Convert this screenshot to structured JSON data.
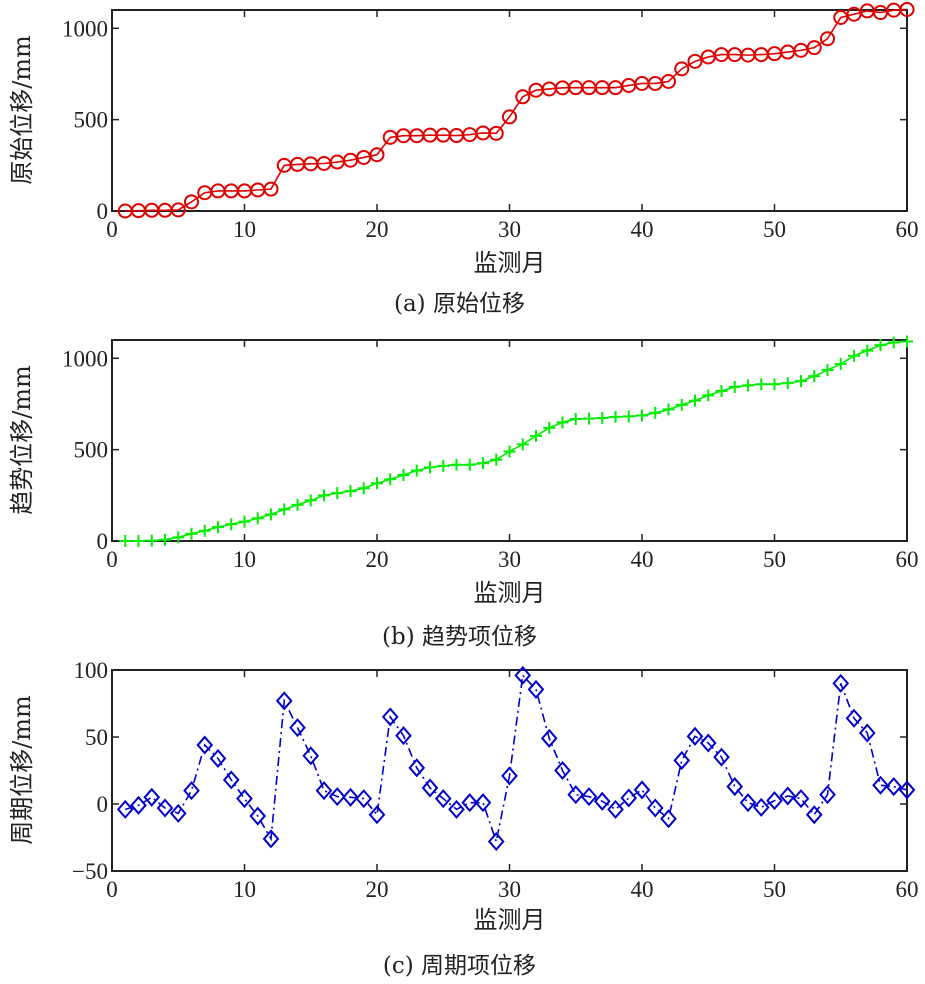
{
  "chart_data": [
    {
      "type": "line",
      "caption": "(a) 原始位移",
      "xlabel": "监测月",
      "ylabel": "原始位移/mm",
      "xlim": [
        0,
        60
      ],
      "ylim": [
        0,
        1100
      ],
      "xticks": [
        0,
        10,
        20,
        30,
        40,
        50,
        60
      ],
      "yticks": [
        0,
        500,
        1000
      ],
      "grid": false,
      "series": [
        {
          "name": "原始位移",
          "color": "#e00000",
          "marker": "circle",
          "linestyle": "solid",
          "x": [
            1,
            2,
            3,
            4,
            5,
            6,
            7,
            8,
            9,
            10,
            11,
            12,
            13,
            14,
            15,
            16,
            17,
            18,
            19,
            20,
            21,
            22,
            23,
            24,
            25,
            26,
            27,
            28,
            29,
            30,
            31,
            32,
            33,
            34,
            35,
            36,
            37,
            38,
            39,
            40,
            41,
            42,
            43,
            44,
            45,
            46,
            47,
            48,
            49,
            50,
            51,
            52,
            53,
            54,
            55,
            56,
            57,
            58,
            59,
            60
          ],
          "values": [
            0,
            2,
            4,
            4,
            6,
            50,
            100,
            110,
            110,
            110,
            115,
            120,
            250,
            255,
            258,
            260,
            268,
            278,
            293,
            308,
            403,
            412,
            412,
            415,
            415,
            413,
            418,
            427,
            425,
            515,
            625,
            661,
            668,
            674,
            675,
            675,
            675,
            675,
            687,
            698,
            698,
            709,
            778,
            819,
            843,
            856,
            856,
            853,
            856,
            861,
            870,
            879,
            894,
            943,
            1059,
            1077,
            1095,
            1086,
            1099,
            1103
          ]
        }
      ]
    },
    {
      "type": "line",
      "caption": "(b) 趋势项位移",
      "xlabel": "监测月",
      "ylabel": "趋势位移/mm",
      "xlim": [
        0,
        60
      ],
      "ylim": [
        0,
        1100
      ],
      "xticks": [
        0,
        10,
        20,
        30,
        40,
        50,
        60
      ],
      "yticks": [
        0,
        500,
        1000
      ],
      "grid": false,
      "series": [
        {
          "name": "趋势项位移",
          "color": "#00ee00",
          "marker": "plus",
          "linestyle": "solid",
          "x": [
            1,
            2,
            3,
            4,
            5,
            6,
            7,
            8,
            9,
            10,
            11,
            12,
            13,
            14,
            15,
            16,
            17,
            18,
            19,
            20,
            21,
            22,
            23,
            24,
            25,
            26,
            27,
            28,
            29,
            30,
            31,
            32,
            33,
            34,
            35,
            36,
            37,
            38,
            39,
            40,
            41,
            42,
            43,
            44,
            45,
            46,
            47,
            48,
            49,
            50,
            51,
            52,
            53,
            54,
            55,
            56,
            57,
            58,
            59,
            60
          ],
          "values": [
            0,
            0,
            2,
            7,
            20,
            40,
            56,
            76,
            92,
            106,
            124,
            146,
            173,
            198,
            222,
            250,
            262,
            273,
            289,
            316,
            338,
            361,
            385,
            403,
            411,
            417,
            417,
            426,
            445,
            490,
            529,
            575,
            619,
            649,
            668,
            670,
            673,
            679,
            682,
            687,
            701,
            720,
            745,
            768,
            797,
            821,
            843,
            852,
            858,
            858,
            864,
            875,
            902,
            936,
            969,
            1013,
            1042,
            1072,
            1086,
            1092
          ]
        }
      ]
    },
    {
      "type": "line",
      "caption": "(c) 周期项位移",
      "xlabel": "监测月",
      "ylabel": "周期位移/mm",
      "xlim": [
        0,
        60
      ],
      "ylim": [
        -50,
        100
      ],
      "xticks": [
        0,
        10,
        20,
        30,
        40,
        50,
        60
      ],
      "yticks": [
        -50,
        0,
        50,
        100
      ],
      "grid": false,
      "series": [
        {
          "name": "周期项位移",
          "color": "#0000cc",
          "marker": "diamond",
          "linestyle": "dashdot",
          "x": [
            1,
            2,
            3,
            4,
            5,
            6,
            7,
            8,
            9,
            10,
            11,
            12,
            13,
            14,
            15,
            16,
            17,
            18,
            19,
            20,
            21,
            22,
            23,
            24,
            25,
            26,
            27,
            28,
            29,
            30,
            31,
            32,
            33,
            34,
            35,
            36,
            37,
            38,
            39,
            40,
            41,
            42,
            43,
            44,
            45,
            46,
            47,
            48,
            49,
            50,
            51,
            52,
            53,
            54,
            55,
            56,
            57,
            58,
            59,
            60
          ],
          "values": [
            -4,
            -1,
            5,
            -3,
            -7,
            10,
            44,
            34,
            18,
            4,
            -9,
            -26,
            77,
            57,
            36,
            10,
            5.5,
            5,
            4,
            -8,
            65,
            51,
            27,
            12,
            4,
            -4,
            1,
            1,
            -28,
            21,
            96,
            85.5,
            49,
            25,
            7,
            5.5,
            2,
            -4,
            4.5,
            10.5,
            -3,
            -11,
            32.5,
            50.5,
            45.5,
            35,
            13,
            1,
            -2.5,
            2.5,
            6,
            4,
            -8,
            7,
            90,
            64,
            53,
            14,
            13,
            10.5
          ]
        }
      ]
    }
  ]
}
